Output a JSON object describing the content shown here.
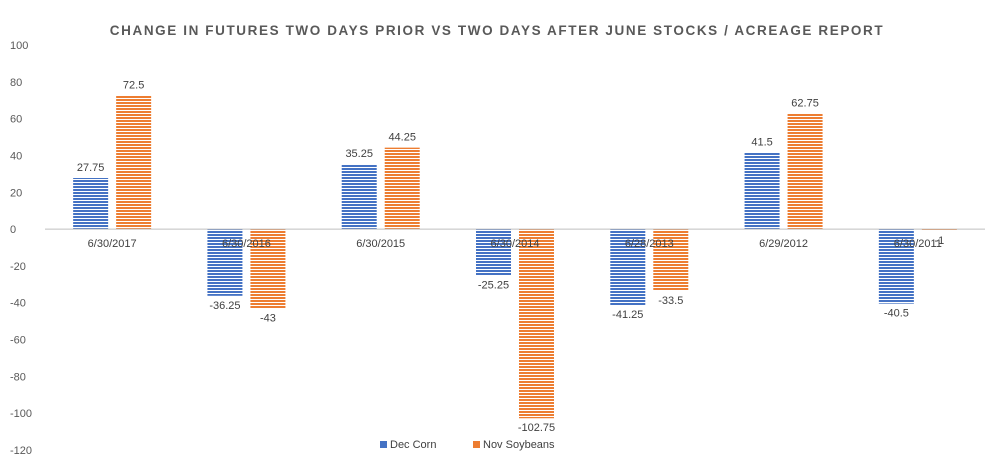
{
  "chart_data": {
    "type": "bar",
    "title": "CHANGE IN FUTURES TWO DAYS PRIOR VS TWO DAYS AFTER JUNE STOCKS / ACREAGE REPORT",
    "categories": [
      "6/30/2017",
      "6/30/2016",
      "6/30/2015",
      "6/30/2014",
      "6/28/2013",
      "6/29/2012",
      "6/30/2011"
    ],
    "series": [
      {
        "name": "Dec Corn",
        "color": "#4472C4",
        "values": [
          27.75,
          -36.25,
          35.25,
          -25.25,
          -41.25,
          41.5,
          -40.5
        ],
        "labels": [
          "27.75",
          "-36.25",
          "35.25",
          "-25.25",
          "-41.25",
          "41.5",
          "-40.5"
        ]
      },
      {
        "name": "Nov Soybeans",
        "color": "#ED7D31",
        "values": [
          72.5,
          -43,
          44.25,
          -102.75,
          -33.5,
          62.75,
          -1
        ],
        "labels": [
          "72.5",
          "-43",
          "44.25",
          "-102.75",
          "-33.5",
          "62.75",
          "-1"
        ]
      }
    ],
    "yticks": [
      "100",
      "80",
      "60",
      "40",
      "20",
      "0",
      "-20",
      "-40",
      "-60",
      "-80",
      "-100",
      "-120"
    ],
    "ylim": [
      -120,
      100
    ],
    "ytick_step": 20,
    "legend_position": "bottom",
    "grid": false,
    "bar_fill": "horizontal-stripes"
  }
}
